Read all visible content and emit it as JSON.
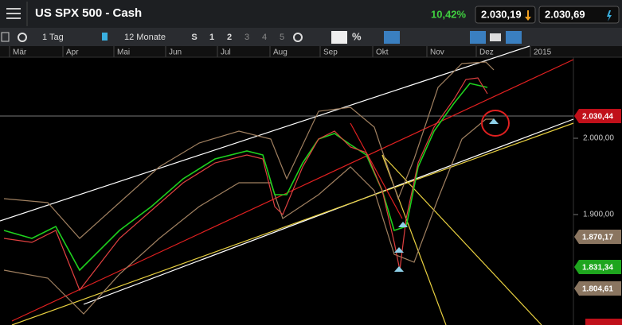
{
  "header": {
    "title": "US SPX 500 - Cash",
    "change": "10,42%",
    "bid": "2.030,19",
    "ask": "2.030,69"
  },
  "toolbar": {
    "interval": "1 Tag",
    "range": "12 Monate",
    "buttons": [
      "S",
      "1",
      "2",
      "3",
      "4",
      "5"
    ]
  },
  "chart": {
    "months": [
      "Mär",
      "Apr",
      "Mai",
      "Jun",
      "Jul",
      "Aug",
      "Sep",
      "Okt",
      "Nov",
      "Dez",
      "2015"
    ],
    "price_axis": [
      "2.000,00",
      "1.900,00"
    ],
    "price_tags": [
      "2.030,44",
      "1.870,17",
      "1.831,34",
      "1.804,61"
    ]
  }
}
